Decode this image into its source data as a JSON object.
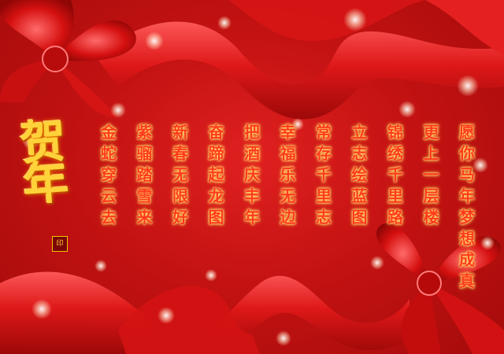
{
  "card": {
    "greeting": "贺年",
    "seal": "印",
    "poem_columns": [
      "金蛇穿云去",
      "紫骝踏雪来",
      "新春无限好",
      "奋蹄起龙图",
      "把酒庆丰年",
      "幸福乐无边",
      "常存千里志",
      "立志绘蓝图",
      "锦绣千里路",
      "更上一层楼",
      "愿你马年梦想成真"
    ]
  },
  "colors": {
    "background": "#c41212",
    "ribbon": "#e01818",
    "text": "#ff3b1e",
    "text_glow": "#ffd23a",
    "greeting": "#ffd23a"
  }
}
